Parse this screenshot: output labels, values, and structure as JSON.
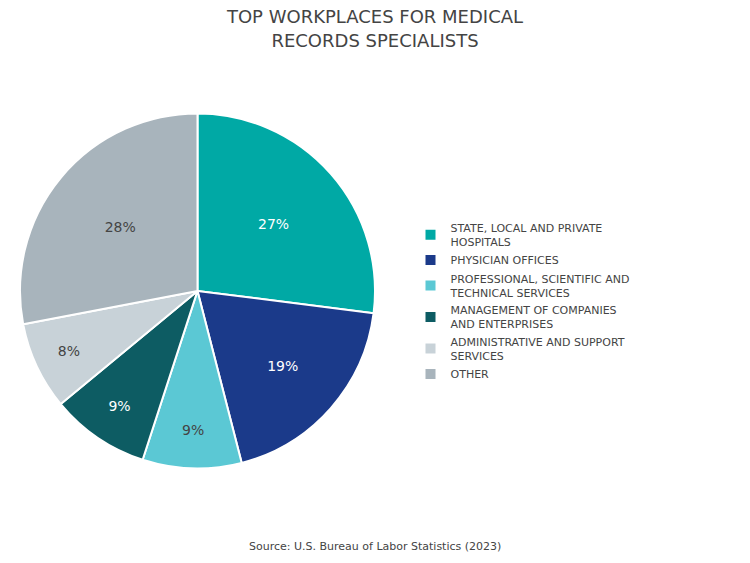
{
  "chart_data": {
    "type": "pie",
    "title": "TOP WORKPLACES FOR MEDICAL\nRECORDS SPECIALISTS",
    "categories": [
      "STATE, LOCAL AND PRIVATE\nHOSPITALS",
      "PHYSICIAN OFFICES",
      "PROFESSIONAL, SCIENTIFIC AND\nTECHNICAL SERVICES",
      "MANAGEMENT OF COMPANIES\nAND ENTERPRISES",
      "ADMINISTRATIVE AND SUPPORT\nSERVICES",
      "OTHER"
    ],
    "values": [
      27,
      19,
      9,
      9,
      8,
      28
    ],
    "value_labels": [
      "27%",
      "19%",
      "9%",
      "9%",
      "8%",
      "28%"
    ],
    "colors": [
      "#00A9A5",
      "#1B3A8A",
      "#5BC8D4",
      "#0D5C63",
      "#C8D2D8",
      "#A8B4BC"
    ],
    "data_labels": true,
    "legend": "right",
    "annotations": [
      "Source: U.S. Bureau of Labor Statistics (2023)"
    ]
  }
}
